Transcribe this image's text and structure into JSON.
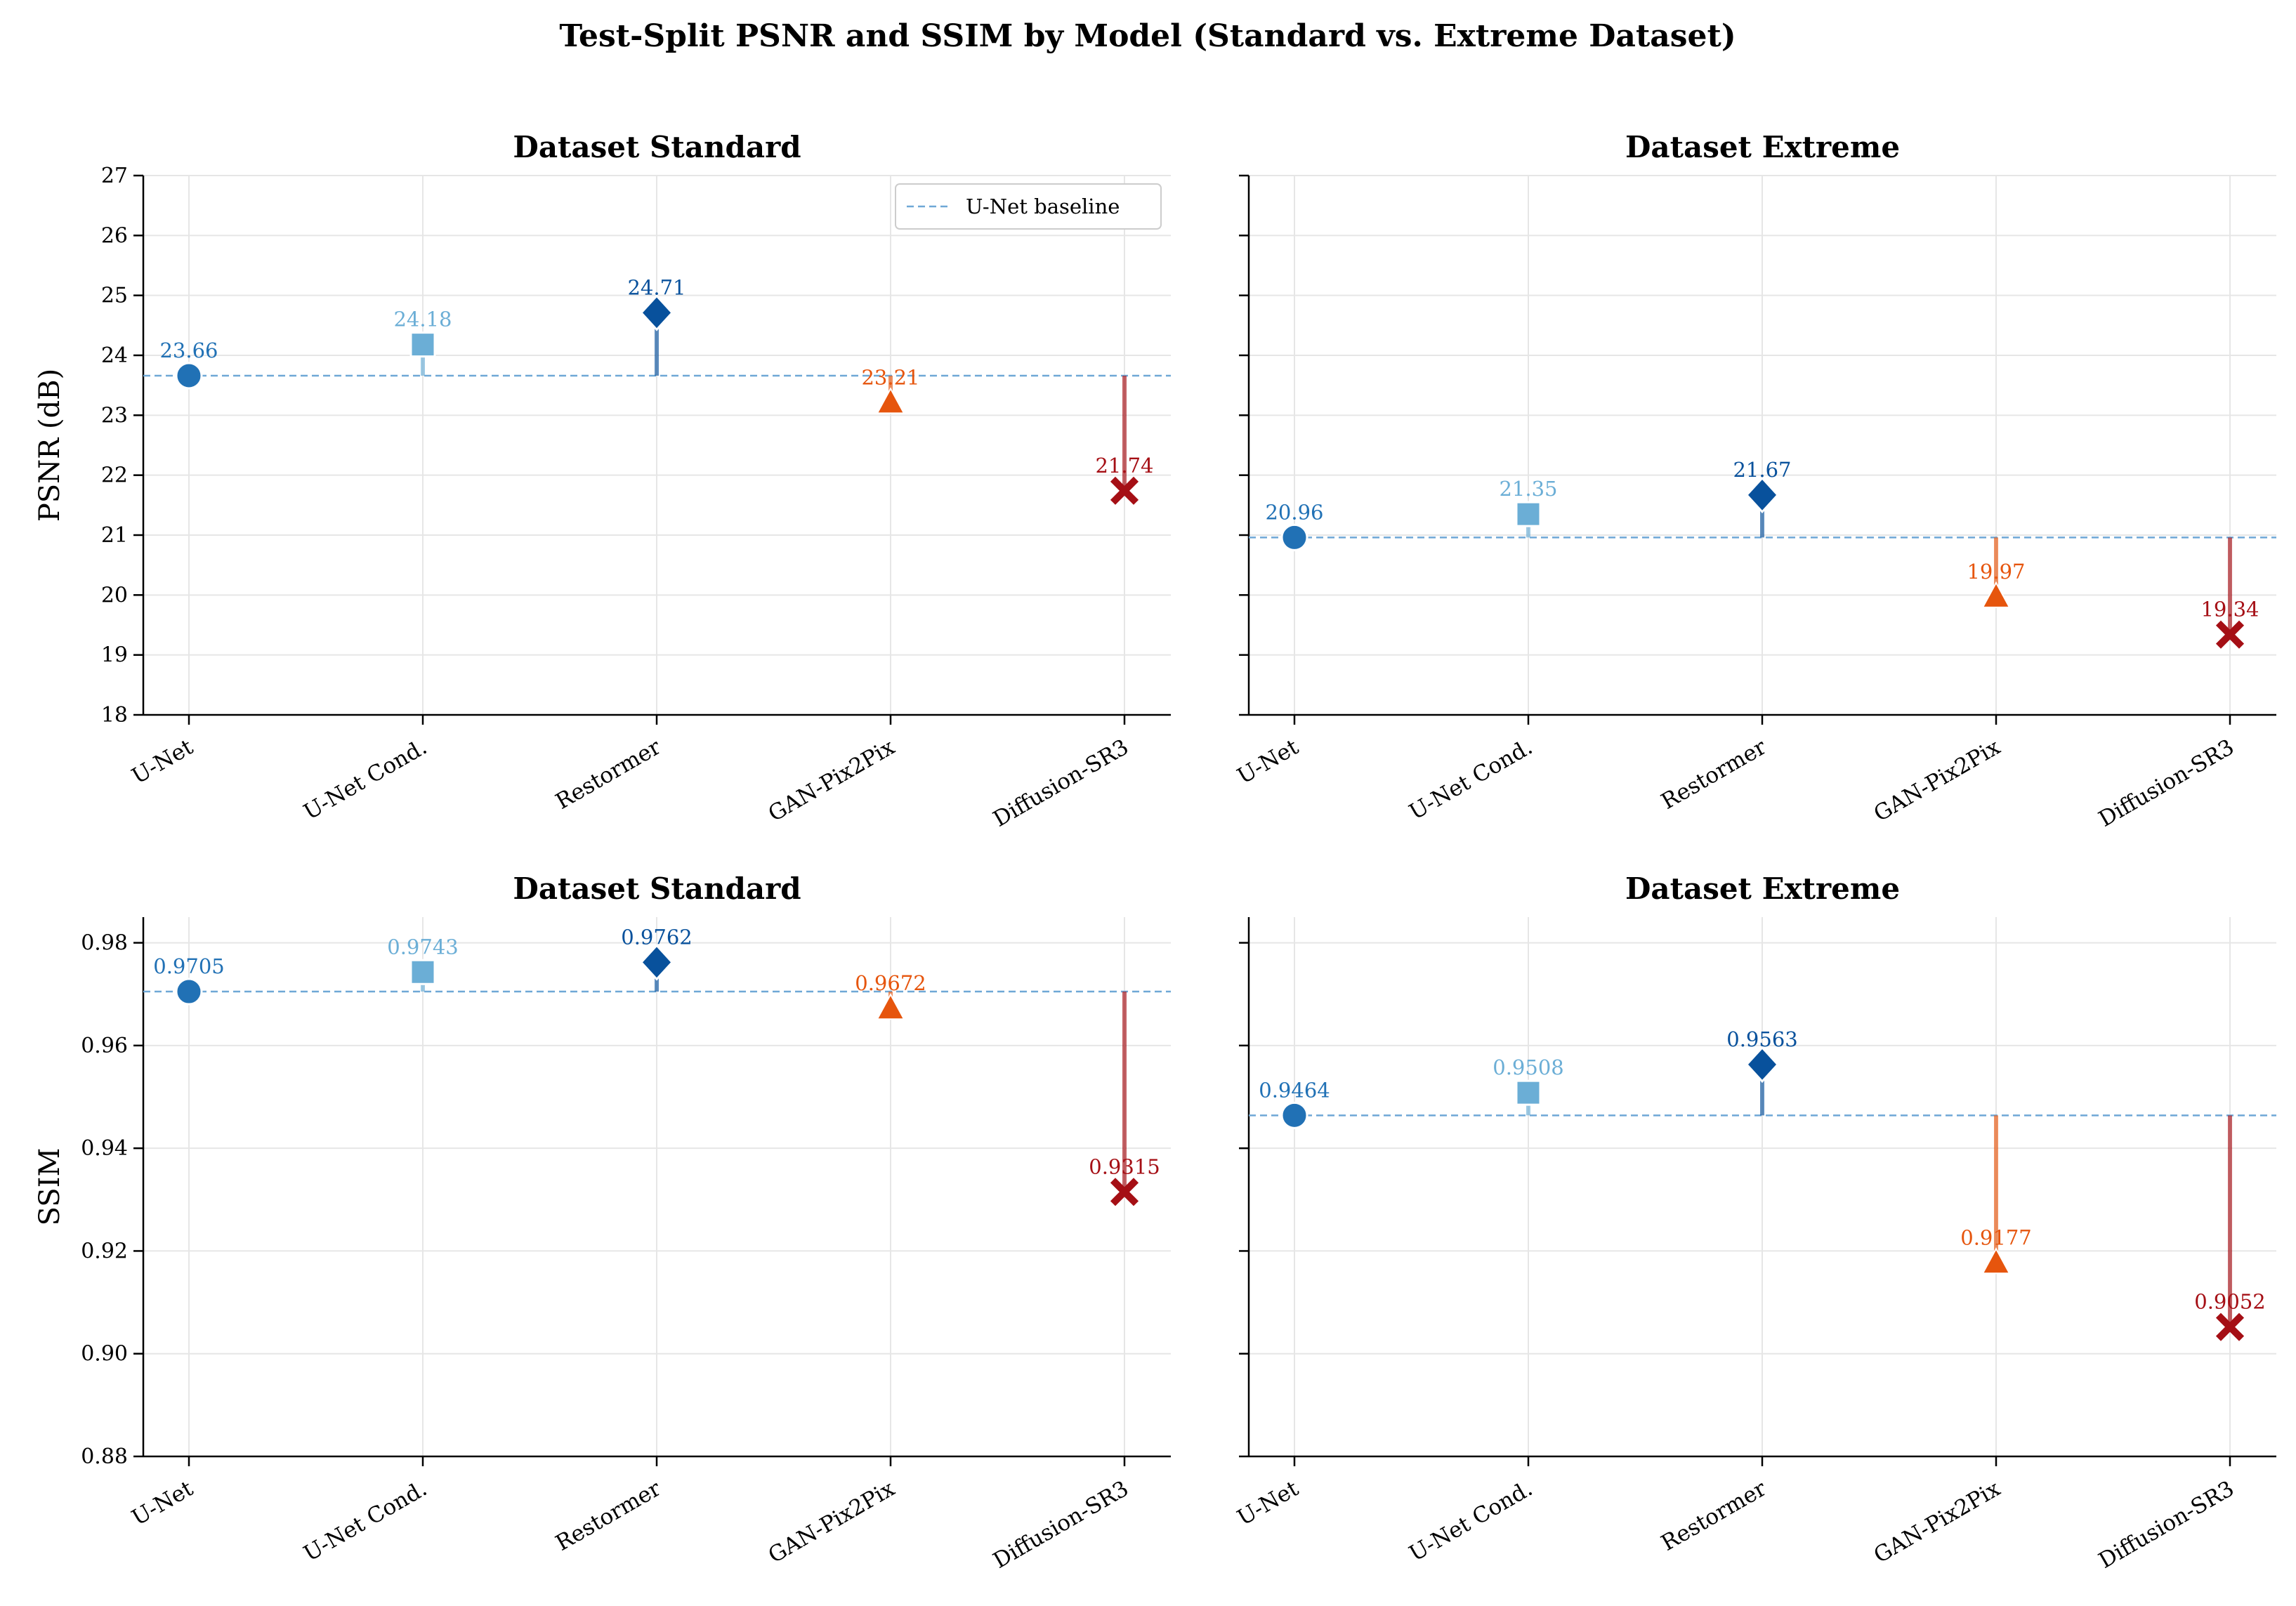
{
  "title": "Test-Split PSNR and SSIM by Model (Standard vs. Extreme Dataset)",
  "colors": {
    "U-Net": "#2171b5",
    "U-Net Cond.": "#6baed6",
    "Restormer": "#08519c",
    "GAN-Pix2Pix": "#e6550d",
    "Diffusion-SR3": "#a50f15",
    "baseline": "#6fa8d6",
    "grid": "#e6e6e6"
  },
  "markers": {
    "U-Net": "circle",
    "U-Net Cond.": "square",
    "Restormer": "diamond",
    "GAN-Pix2Pix": "triangle",
    "Diffusion-SR3": "x"
  },
  "chart_data": [
    {
      "type": "scatter",
      "title": "Dataset Standard",
      "ylabel": "PSNR (dB)",
      "categories": [
        "U-Net",
        "U-Net Cond.",
        "Restormer",
        "GAN-Pix2Pix",
        "Diffusion-SR3"
      ],
      "values": [
        23.66,
        24.18,
        24.71,
        23.21,
        21.74
      ],
      "value_labels": [
        "23.66",
        "24.18",
        "24.71",
        "23.21",
        "21.74"
      ],
      "baseline": 23.66,
      "ylim": [
        18,
        27
      ],
      "yticks": [
        18,
        19,
        20,
        21,
        22,
        23,
        24,
        25,
        26,
        27
      ],
      "ytick_labels": [
        "18",
        "19",
        "20",
        "21",
        "22",
        "23",
        "24",
        "25",
        "26",
        "27"
      ],
      "show_ytick_labels": true,
      "legend": {
        "label": "U-Net baseline",
        "position": "upper right"
      },
      "grid": true
    },
    {
      "type": "scatter",
      "title": "Dataset Extreme",
      "ylabel": "",
      "categories": [
        "U-Net",
        "U-Net Cond.",
        "Restormer",
        "GAN-Pix2Pix",
        "Diffusion-SR3"
      ],
      "values": [
        20.96,
        21.35,
        21.67,
        19.97,
        19.34
      ],
      "value_labels": [
        "20.96",
        "21.35",
        "21.67",
        "19.97",
        "19.34"
      ],
      "baseline": 20.96,
      "ylim": [
        18,
        27
      ],
      "yticks": [
        18,
        19,
        20,
        21,
        22,
        23,
        24,
        25,
        26,
        27
      ],
      "ytick_labels": [
        "18",
        "19",
        "20",
        "21",
        "22",
        "23",
        "24",
        "25",
        "26",
        "27"
      ],
      "show_ytick_labels": false,
      "grid": true
    },
    {
      "type": "scatter",
      "title": "Dataset Standard",
      "ylabel": "SSIM",
      "categories": [
        "U-Net",
        "U-Net Cond.",
        "Restormer",
        "GAN-Pix2Pix",
        "Diffusion-SR3"
      ],
      "values": [
        0.9705,
        0.9743,
        0.9762,
        0.9672,
        0.9315
      ],
      "value_labels": [
        "0.9705",
        "0.9743",
        "0.9762",
        "0.9672",
        "0.9315"
      ],
      "baseline": 0.9705,
      "ylim": [
        0.88,
        0.985
      ],
      "yticks": [
        0.88,
        0.9,
        0.92,
        0.94,
        0.96,
        0.98
      ],
      "ytick_labels": [
        "0.88",
        "0.90",
        "0.92",
        "0.94",
        "0.96",
        "0.98"
      ],
      "show_ytick_labels": true,
      "grid": true
    },
    {
      "type": "scatter",
      "title": "Dataset Extreme",
      "ylabel": "",
      "categories": [
        "U-Net",
        "U-Net Cond.",
        "Restormer",
        "GAN-Pix2Pix",
        "Diffusion-SR3"
      ],
      "values": [
        0.9464,
        0.9508,
        0.9563,
        0.9177,
        0.9052
      ],
      "value_labels": [
        "0.9464",
        "0.9508",
        "0.9563",
        "0.9177",
        "0.9052"
      ],
      "baseline": 0.9464,
      "ylim": [
        0.88,
        0.985
      ],
      "yticks": [
        0.88,
        0.9,
        0.92,
        0.94,
        0.96,
        0.98
      ],
      "ytick_labels": [
        "0.88",
        "0.90",
        "0.92",
        "0.94",
        "0.96",
        "0.98"
      ],
      "show_ytick_labels": false,
      "grid": true
    }
  ]
}
